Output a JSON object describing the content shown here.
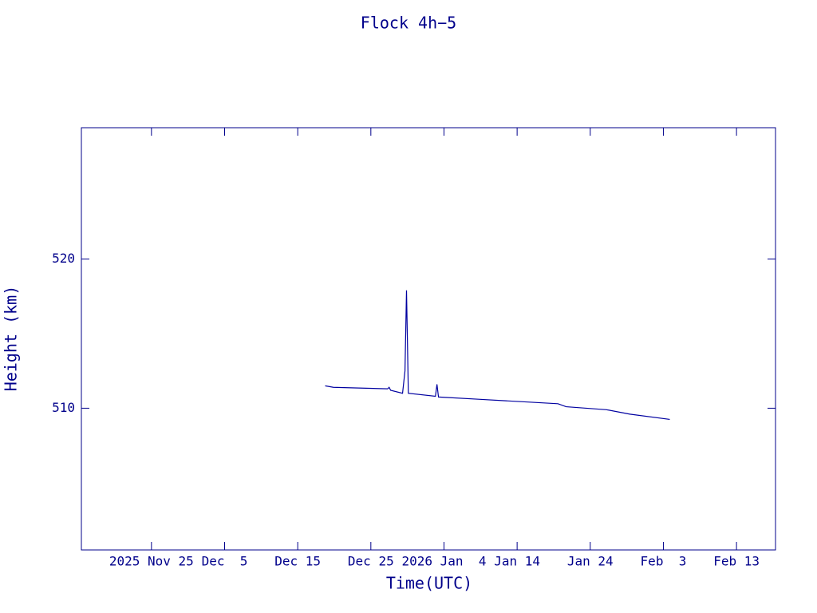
{
  "chart_data": {
    "type": "line",
    "title": "Flock 4h−5",
    "x_label": "Time(UTC)",
    "y_label": "Height (km)",
    "x": [
      "2025-12-18T18:00",
      "2025-12-19T21:00",
      "2025-12-27T07:00",
      "2025-12-27T12:00",
      "2025-12-27T17:00",
      "2025-12-29T08:00",
      "2025-12-29T16:00",
      "2025-12-29T21:00",
      "2025-12-30T00:00",
      "2025-12-30T03:00",
      "2026-01-02T20:00",
      "2026-01-03T01:00",
      "2026-01-03T06:00",
      "2026-01-08T17:00",
      "2026-01-19T14:00",
      "2026-01-20T17:00",
      "2026-01-26T05:00",
      "2026-01-29T10:00",
      "2026-02-03T21:00"
    ],
    "series": [
      {
        "name": "Height",
        "color": "#0000a0",
        "values": [
          511.5,
          511.4,
          511.3,
          511.4,
          511.2,
          511.0,
          512.5,
          517.9,
          514.5,
          511.0,
          510.8,
          511.6,
          510.75,
          510.6,
          510.3,
          510.1,
          509.9,
          509.6,
          509.25
        ]
      }
    ],
    "xlim": [
      "2025-11-15T10:00",
      "2026-02-18T08:00"
    ],
    "xticks": [
      {
        "value": "2025-11-25",
        "label": "2025 Nov 25"
      },
      {
        "value": "2025-12-05",
        "label": "Dec  5"
      },
      {
        "value": "2025-12-15",
        "label": "Dec 15"
      },
      {
        "value": "2025-12-25",
        "label": "Dec 25"
      },
      {
        "value": "2026-01-04",
        "label": "2026 Jan  4"
      },
      {
        "value": "2026-01-14",
        "label": "Jan 14"
      },
      {
        "value": "2026-01-24",
        "label": "Jan 24"
      },
      {
        "value": "2026-02-03",
        "label": "Feb  3"
      },
      {
        "value": "2026-02-13",
        "label": "Feb 13"
      }
    ],
    "ylim": [
      500.5,
      528.8
    ],
    "yticks": [
      510,
      520
    ]
  }
}
